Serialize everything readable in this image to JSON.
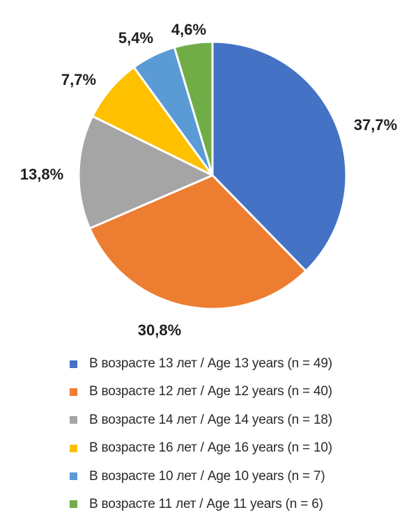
{
  "chart_data": {
    "type": "pie",
    "slices": [
      {
        "legend": "В возрасте 13 лет / Age 13 years (n = 49)",
        "n": 49,
        "value": 37.7,
        "label": "37,7%",
        "color": "#4472c4"
      },
      {
        "legend": "В возрасте 12 лет / Age 12 years (n = 40)",
        "n": 40,
        "value": 30.8,
        "label": "30,8%",
        "color": "#ed7d31"
      },
      {
        "legend": "В возрасте 14 лет / Age 14 years (n = 18)",
        "n": 18,
        "value": 13.8,
        "label": "13,8%",
        "color": "#a5a5a5"
      },
      {
        "legend": "В возрасте 16 лет / Age 16 years (n = 10)",
        "n": 10,
        "value": 7.7,
        "label": "7,7%",
        "color": "#ffc000"
      },
      {
        "legend": "В возрасте 10 лет / Age 10 years (n = 7)",
        "n": 7,
        "value": 5.4,
        "label": "5,4%",
        "color": "#5b9bd5"
      },
      {
        "legend": "В возрасте 11 лет / Age 11 years (n = 6)",
        "n": 6,
        "value": 4.6,
        "label": "4,6%",
        "color": "#70ad47"
      }
    ],
    "start": "12 o'clock",
    "direction": "clockwise",
    "legend_position": "bottom"
  }
}
